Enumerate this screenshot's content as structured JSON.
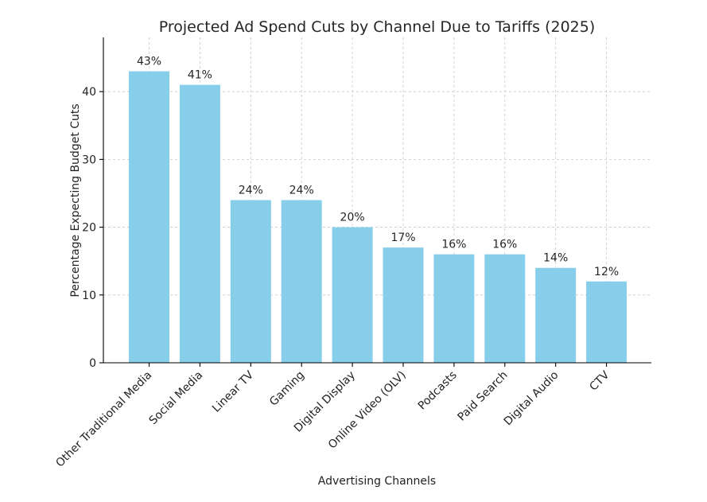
{
  "chart_data": {
    "type": "bar",
    "title": "Projected Ad Spend Cuts by Channel Due to Tariffs (2025)",
    "xlabel": "Advertising Channels",
    "ylabel": "Percentage Expecting Budget Cuts",
    "categories": [
      "Other Traditional Media",
      "Social Media",
      "Linear TV",
      "Gaming",
      "Digital Display",
      "Online Video (OLV)",
      "Podcasts",
      "Paid Search",
      "Digital Audio",
      "CTV"
    ],
    "values": [
      43,
      41,
      24,
      24,
      20,
      17,
      16,
      16,
      14,
      12
    ],
    "value_labels": [
      "43%",
      "41%",
      "24%",
      "24%",
      "20%",
      "17%",
      "16%",
      "16%",
      "14%",
      "12%"
    ],
    "ylim": [
      0,
      48
    ],
    "yticks": [
      0,
      10,
      20,
      30,
      40
    ],
    "ytick_labels": [
      "0",
      "10",
      "20",
      "30",
      "40"
    ],
    "grid": true,
    "bar_color": "#87CEEB"
  }
}
